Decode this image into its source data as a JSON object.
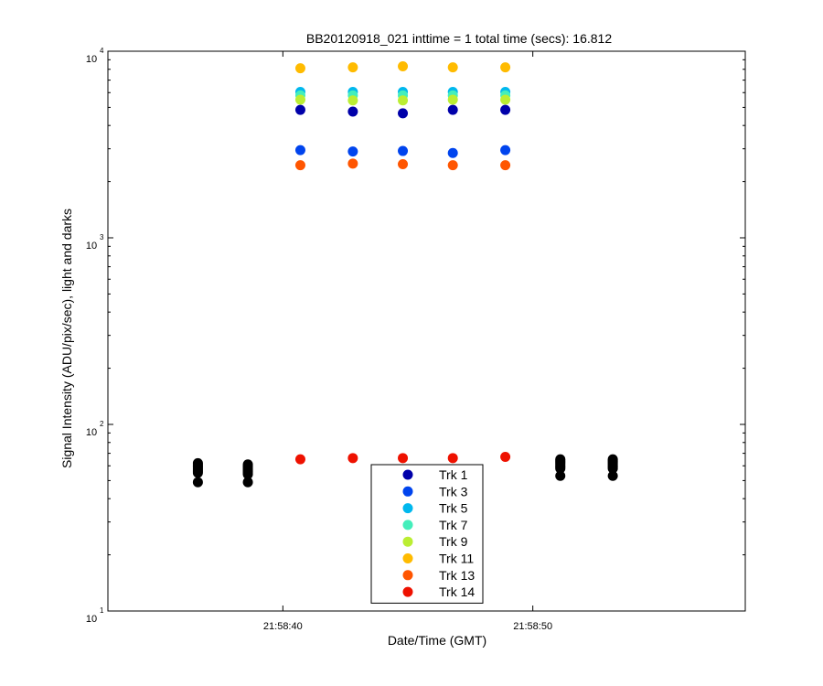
{
  "chart_data": {
    "type": "scatter",
    "title": "BB20120918_021 inttime = 1 total time (secs): 16.812",
    "xlabel": "Date/Time (GMT)",
    "ylabel": "Signal Intensity (ADU/pix/sec), light and darks",
    "yscale": "log",
    "ylim": [
      10,
      10000
    ],
    "xlim": [
      "21:58:33.0",
      "21:58:58.5"
    ],
    "x_ticks": [
      {
        "value": "21:58:40",
        "label": "21:58:40"
      },
      {
        "value": "21:58:50",
        "label": "21:58:50"
      }
    ],
    "y_ticks": [
      {
        "value": 10,
        "base": "10",
        "exp": "1"
      },
      {
        "value": 100,
        "base": "10",
        "exp": "2"
      },
      {
        "value": 1000,
        "base": "10",
        "exp": "3"
      },
      {
        "value": 10000,
        "base": "10",
        "exp": "4"
      }
    ],
    "grid": false,
    "legend": {
      "placement": "bottom-center"
    },
    "light_x": [
      "21:58:40.7",
      "21:58:42.8",
      "21:58:44.8",
      "21:58:46.8",
      "21:58:48.9"
    ],
    "dark_x": [
      "21:58:36.6",
      "21:58:38.6",
      "21:58:51.1",
      "21:58:53.2"
    ],
    "series": [
      {
        "name": "Trk 1",
        "color": "#0000aa",
        "values": [
          4850,
          4750,
          4650,
          4850,
          4850
        ]
      },
      {
        "name": "Trk 3",
        "color": "#0044ee",
        "values": [
          2950,
          2900,
          2920,
          2850,
          2950
        ]
      },
      {
        "name": "Trk 5",
        "color": "#00b8ee",
        "values": [
          6050,
          6050,
          6050,
          6050,
          6050
        ]
      },
      {
        "name": "Trk 7",
        "color": "#44eebb",
        "values": [
          5800,
          5800,
          5800,
          5800,
          5800
        ]
      },
      {
        "name": "Trk 9",
        "color": "#bbee33",
        "values": [
          5500,
          5450,
          5450,
          5500,
          5500
        ]
      },
      {
        "name": "Trk 11",
        "color": "#ffbb00",
        "values": [
          8100,
          8200,
          8300,
          8200,
          8200
        ]
      },
      {
        "name": "Trk 13",
        "color": "#ff5500",
        "values": [
          2450,
          2500,
          2480,
          2450,
          2450
        ]
      },
      {
        "name": "Trk 14",
        "color": "#ee1100",
        "values": [
          65,
          66,
          66,
          66,
          67
        ]
      }
    ],
    "dark_series": {
      "color": "#000000",
      "values": [
        [
          62,
          61,
          60,
          59,
          58,
          57,
          56,
          55,
          49
        ],
        [
          61,
          60,
          59,
          58,
          57,
          56,
          55,
          54,
          49
        ],
        [
          65,
          64,
          63,
          62,
          61,
          60,
          59,
          58,
          53
        ],
        [
          65,
          64,
          63,
          62,
          61,
          60,
          59,
          58,
          53
        ]
      ]
    }
  }
}
